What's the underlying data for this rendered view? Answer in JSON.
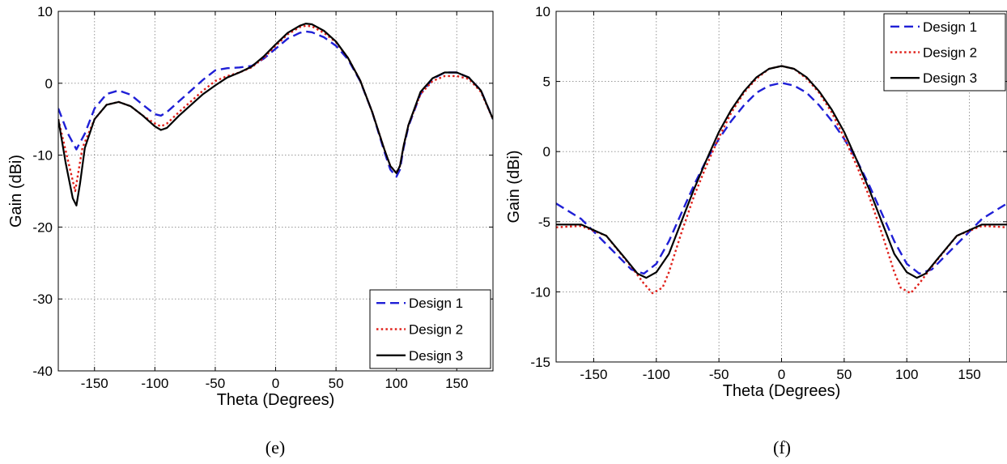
{
  "chart_data": [
    {
      "type": "line",
      "caption": "(e)",
      "xlabel": "Theta (Degrees)",
      "ylabel": "Gain (dBi)",
      "xlim": [
        -180,
        180
      ],
      "ylim": [
        -40,
        10
      ],
      "xticks": [
        -150,
        -100,
        -50,
        0,
        50,
        100,
        150
      ],
      "yticks": [
        -40,
        -30,
        -20,
        -10,
        0,
        10
      ],
      "grid": true,
      "legend": "bottom-right",
      "series": [
        {
          "name": "Design 1",
          "color": "#1f1fd6",
          "style": "dashed",
          "x": [
            -180,
            -172,
            -165,
            -158,
            -150,
            -140,
            -130,
            -120,
            -110,
            -100,
            -95,
            -90,
            -80,
            -70,
            -60,
            -50,
            -40,
            -30,
            -20,
            -10,
            0,
            10,
            20,
            25,
            30,
            40,
            50,
            60,
            70,
            80,
            90,
            95,
            100,
            103,
            106,
            110,
            120,
            130,
            140,
            150,
            160,
            170,
            180
          ],
          "y": [
            -3.5,
            -7,
            -9.2,
            -7,
            -3.5,
            -1.5,
            -1,
            -1.6,
            -3,
            -4.3,
            -4.5,
            -4,
            -2.5,
            -1,
            0.5,
            1.8,
            2.1,
            2.2,
            2.4,
            3.4,
            4.8,
            6.2,
            7,
            7.2,
            7.1,
            6.4,
            5.2,
            3.3,
            0.3,
            -4,
            -9.5,
            -12,
            -13,
            -12,
            -9,
            -6,
            -1.5,
            0.6,
            1.5,
            1.5,
            0.8,
            -1,
            -5
          ]
        },
        {
          "name": "Design 2",
          "color": "#e0201a",
          "style": "dotted",
          "x": [
            -180,
            -173,
            -166,
            -160,
            -150,
            -140,
            -130,
            -120,
            -110,
            -100,
            -95,
            -90,
            -80,
            -70,
            -60,
            -50,
            -40,
            -30,
            -20,
            -10,
            0,
            10,
            20,
            25,
            30,
            40,
            50,
            60,
            70,
            80,
            90,
            95,
            100,
            103,
            106,
            110,
            120,
            130,
            140,
            150,
            160,
            170,
            180
          ],
          "y": [
            -5,
            -10,
            -15,
            -9,
            -5,
            -3,
            -2.6,
            -3.2,
            -4.5,
            -5.6,
            -6,
            -5.6,
            -4,
            -2.5,
            -1,
            0.3,
            1,
            1.5,
            2.2,
            3.5,
            5.2,
            6.8,
            7.8,
            8,
            7.9,
            7,
            5.7,
            3.5,
            0.4,
            -4,
            -9.2,
            -11.5,
            -12.5,
            -11.5,
            -8.7,
            -5.8,
            -1.5,
            0.3,
            1,
            1,
            0.6,
            -1.2,
            -5
          ]
        },
        {
          "name": "Design 3",
          "color": "#000000",
          "style": "solid",
          "x": [
            -180,
            -174,
            -168,
            -165,
            -162,
            -158,
            -150,
            -140,
            -130,
            -120,
            -110,
            -100,
            -95,
            -90,
            -80,
            -70,
            -60,
            -50,
            -40,
            -30,
            -20,
            -10,
            0,
            10,
            20,
            25,
            30,
            40,
            50,
            60,
            70,
            80,
            90,
            95,
            100,
            103,
            106,
            110,
            120,
            130,
            140,
            150,
            160,
            170,
            180
          ],
          "y": [
            -5,
            -11,
            -16,
            -17,
            -14,
            -9,
            -5,
            -3,
            -2.6,
            -3.2,
            -4.5,
            -6,
            -6.5,
            -6.2,
            -4.5,
            -3,
            -1.5,
            -0.3,
            0.8,
            1.5,
            2.3,
            3.7,
            5.4,
            7,
            8,
            8.3,
            8.2,
            7.3,
            5.8,
            3.5,
            0.4,
            -4,
            -9.2,
            -11.5,
            -12.5,
            -11.5,
            -8.7,
            -5.8,
            -1.2,
            0.7,
            1.5,
            1.5,
            0.8,
            -1,
            -5
          ]
        }
      ]
    },
    {
      "type": "line",
      "caption": "(f)",
      "xlabel": "Theta (Degrees)",
      "ylabel": "Gain (dBi)",
      "xlim": [
        -180,
        180
      ],
      "ylim": [
        -15,
        10
      ],
      "xticks": [
        -150,
        -100,
        -50,
        0,
        50,
        100,
        150
      ],
      "yticks": [
        -15,
        -10,
        -5,
        0,
        5,
        10
      ],
      "grid": true,
      "legend": "top-right",
      "series": [
        {
          "name": "Design 1",
          "color": "#1f1fd6",
          "style": "dashed",
          "x": [
            -180,
            -160,
            -140,
            -120,
            -110,
            -100,
            -90,
            -80,
            -70,
            -60,
            -50,
            -40,
            -30,
            -20,
            -10,
            0,
            10,
            20,
            30,
            40,
            50,
            60,
            70,
            80,
            90,
            100,
            110,
            120,
            140,
            160,
            180
          ],
          "y": [
            -3.7,
            -4.8,
            -6.6,
            -8.4,
            -8.7,
            -8,
            -6.4,
            -4.4,
            -2.4,
            -0.6,
            0.9,
            2.2,
            3.3,
            4.2,
            4.7,
            4.9,
            4.7,
            4.2,
            3.3,
            2.2,
            0.9,
            -0.6,
            -2.4,
            -4.4,
            -6.4,
            -8,
            -8.7,
            -8.4,
            -6.6,
            -4.8,
            -3.7
          ]
        },
        {
          "name": "Design 2",
          "color": "#e0201a",
          "style": "dotted",
          "x": [
            -180,
            -160,
            -140,
            -120,
            -110,
            -103,
            -95,
            -90,
            -80,
            -70,
            -60,
            -50,
            -40,
            -30,
            -20,
            -10,
            0,
            10,
            20,
            30,
            40,
            50,
            60,
            70,
            80,
            90,
            95,
            103,
            110,
            120,
            140,
            160,
            180
          ],
          "y": [
            -5.4,
            -5.3,
            -6,
            -8.2,
            -9.4,
            -10.1,
            -9.7,
            -8.6,
            -5.8,
            -3.2,
            -1,
            1,
            2.8,
            4.2,
            5.2,
            5.9,
            6.1,
            5.9,
            5.2,
            4.2,
            2.8,
            1,
            -1,
            -3.2,
            -5.8,
            -8.6,
            -9.7,
            -10.1,
            -9.4,
            -8.2,
            -6,
            -5.3,
            -5.4
          ]
        },
        {
          "name": "Design 3",
          "color": "#000000",
          "style": "solid",
          "x": [
            -180,
            -160,
            -140,
            -125,
            -115,
            -108,
            -100,
            -90,
            -80,
            -70,
            -60,
            -50,
            -40,
            -30,
            -20,
            -10,
            0,
            10,
            20,
            30,
            40,
            50,
            60,
            70,
            80,
            90,
            100,
            108,
            115,
            125,
            140,
            160,
            180
          ],
          "y": [
            -5.2,
            -5.2,
            -6,
            -7.6,
            -8.7,
            -9,
            -8.6,
            -7.3,
            -5,
            -2.7,
            -0.6,
            1.4,
            3,
            4.3,
            5.3,
            5.9,
            6.1,
            5.9,
            5.3,
            4.3,
            3,
            1.4,
            -0.6,
            -2.7,
            -5,
            -7.3,
            -8.6,
            -9,
            -8.7,
            -7.6,
            -6,
            -5.2,
            -5.2
          ]
        }
      ]
    }
  ]
}
